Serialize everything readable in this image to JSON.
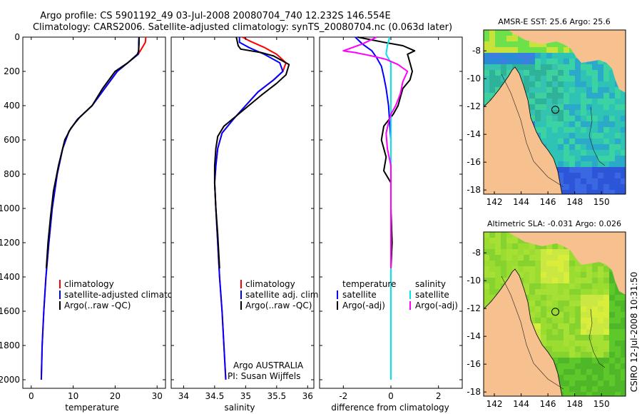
{
  "header": {
    "line1": "Argo profile: CS 5901192_49 03-Jul-2008 20080704_740 12.232S 146.554E",
    "line2": "Climatology: CARS2006. Satellite-adjusted climatology: synTS_20080704.nc (0.063d later)"
  },
  "side_text": "CSIRO 12-Jul-2008 10:31:50",
  "colors": {
    "climatology": "#ff0000",
    "satellite": "#0000ff",
    "argo": "#000000",
    "sal_satellite": "#00e5ee",
    "sal_argo": "#ff00ff",
    "land": "#f7c08f"
  },
  "chart_data": [
    {
      "type": "line",
      "name": "temperature-profile",
      "xlabel": "temperature",
      "ylabel": "",
      "xlim": [
        -2,
        32
      ],
      "ylim": [
        2050,
        0
      ],
      "xticks": [
        0,
        10,
        20,
        30
      ],
      "yticks": [
        0,
        200,
        400,
        600,
        800,
        1000,
        1200,
        1400,
        1600,
        1800,
        2000
      ],
      "legend": [
        "climatology",
        "satellite-adjusted climatology",
        "Argo(..raw -QC)"
      ],
      "series": [
        {
          "name": "climatology",
          "color_key": "climatology",
          "points": [
            [
              27.3,
              0
            ],
            [
              27.2,
              30
            ],
            [
              26.5,
              60
            ],
            [
              25.5,
              100
            ],
            [
              23,
              150
            ],
            [
              20.5,
              200
            ],
            [
              17.5,
              300
            ],
            [
              14.5,
              400
            ],
            [
              11,
              480
            ],
            [
              9,
              550
            ],
            [
              7.5,
              650
            ],
            [
              6.2,
              800
            ],
            [
              5,
              1000
            ],
            [
              4.2,
              1200
            ],
            [
              3.5,
              1400
            ],
            [
              3.0,
              1600
            ],
            [
              2.6,
              1800
            ],
            [
              2.4,
              2000
            ]
          ]
        },
        {
          "name": "satellite-adjusted climatology",
          "color_key": "satellite",
          "points": [
            [
              25.7,
              0
            ],
            [
              25.6,
              30
            ],
            [
              25.6,
              70
            ],
            [
              25.5,
              100
            ],
            [
              23,
              150
            ],
            [
              20.5,
              200
            ],
            [
              17.5,
              300
            ],
            [
              14.5,
              400
            ],
            [
              11,
              480
            ],
            [
              9,
              550
            ],
            [
              7.5,
              650
            ],
            [
              6.2,
              800
            ],
            [
              5,
              1000
            ],
            [
              4.2,
              1200
            ],
            [
              3.5,
              1400
            ],
            [
              3.0,
              1600
            ],
            [
              2.6,
              1800
            ],
            [
              2.4,
              2000
            ]
          ]
        },
        {
          "name": "Argo(..raw -QC)",
          "color_key": "argo",
          "points": [
            [
              25.7,
              0
            ],
            [
              25.7,
              40
            ],
            [
              25.6,
              70
            ],
            [
              25.6,
              80
            ],
            [
              25.3,
              100
            ],
            [
              23,
              150
            ],
            [
              20,
              200
            ],
            [
              17,
              300
            ],
            [
              14.5,
              400
            ],
            [
              11.5,
              470
            ],
            [
              9.5,
              530
            ],
            [
              8,
              600
            ],
            [
              6.5,
              750
            ],
            [
              5.3,
              900
            ],
            [
              4.6,
              1050
            ],
            [
              4,
              1200
            ],
            [
              3.6,
              1350
            ]
          ]
        }
      ]
    },
    {
      "type": "line",
      "name": "salinity-profile",
      "xlabel": "salinity",
      "ylabel": "",
      "xlim": [
        33.8,
        36.1
      ],
      "ylim": [
        2050,
        0
      ],
      "xticks": [
        34,
        34.5,
        35,
        35.5,
        36
      ],
      "yticks": [
        0,
        200,
        400,
        600,
        800,
        1000,
        1200,
        1400,
        1600,
        1800,
        2000
      ],
      "legend": [
        "climatology",
        "satellite adj. clim.",
        "Argo(..raw -QC)"
      ],
      "annotation": [
        "Argo AUSTRALIA",
        "PI: Susan Wijffels"
      ],
      "series": [
        {
          "name": "climatology",
          "color_key": "climatology",
          "points": [
            [
              34.95,
              0
            ],
            [
              35.05,
              20
            ],
            [
              35.3,
              60
            ],
            [
              35.5,
              100
            ],
            [
              35.65,
              150
            ],
            [
              35.6,
              200
            ],
            [
              35.45,
              250
            ],
            [
              35.2,
              320
            ],
            [
              35.0,
              400
            ],
            [
              34.8,
              480
            ],
            [
              34.62,
              560
            ],
            [
              34.55,
              650
            ],
            [
              34.52,
              750
            ],
            [
              34.5,
              850
            ],
            [
              34.52,
              1000
            ],
            [
              34.55,
              1200
            ],
            [
              34.58,
              1400
            ],
            [
              34.62,
              1600
            ],
            [
              34.65,
              1800
            ],
            [
              34.68,
              2000
            ]
          ]
        },
        {
          "name": "satellite adj. clim.",
          "color_key": "satellite",
          "points": [
            [
              34.9,
              0
            ],
            [
              34.9,
              30
            ],
            [
              35.05,
              60
            ],
            [
              35.3,
              100
            ],
            [
              35.55,
              150
            ],
            [
              35.6,
              200
            ],
            [
              35.45,
              250
            ],
            [
              35.2,
              320
            ],
            [
              35.0,
              400
            ],
            [
              34.8,
              480
            ],
            [
              34.62,
              560
            ],
            [
              34.55,
              650
            ],
            [
              34.52,
              750
            ],
            [
              34.5,
              850
            ],
            [
              34.52,
              1000
            ],
            [
              34.55,
              1200
            ],
            [
              34.58,
              1400
            ],
            [
              34.62,
              1600
            ],
            [
              34.65,
              1800
            ],
            [
              34.68,
              2000
            ]
          ]
        },
        {
          "name": "Argo(..raw -QC)",
          "color_key": "argo",
          "points": [
            [
              34.85,
              0
            ],
            [
              34.88,
              50
            ],
            [
              34.92,
              70
            ],
            [
              35.25,
              90
            ],
            [
              35.45,
              110
            ],
            [
              35.7,
              160
            ],
            [
              35.65,
              220
            ],
            [
              35.5,
              270
            ],
            [
              35.25,
              340
            ],
            [
              35.05,
              400
            ],
            [
              34.85,
              460
            ],
            [
              34.65,
              520
            ],
            [
              34.55,
              580
            ],
            [
              34.52,
              650
            ],
            [
              34.5,
              750
            ],
            [
              34.5,
              850
            ],
            [
              34.52,
              1000
            ],
            [
              34.55,
              1150
            ],
            [
              34.58,
              1350
            ]
          ]
        }
      ]
    },
    {
      "type": "line",
      "name": "difference-profile",
      "xlabel": "difference from climatology",
      "ylabel": "",
      "xlim": [
        -3,
        3
      ],
      "ylim": [
        2050,
        0
      ],
      "xticks": [
        -2,
        0,
        2
      ],
      "yticks": [
        0,
        200,
        400,
        600,
        800,
        1000,
        1200,
        1400,
        1600,
        1800,
        2000
      ],
      "legend_columns": [
        {
          "title": "temperature",
          "items": [
            "satellite",
            "Argo(-adj)"
          ]
        },
        {
          "title": "salinity",
          "items": [
            "satellite",
            "Argo(-adj)"
          ]
        }
      ],
      "series": [
        {
          "name": "temperature satellite",
          "color_key": "satellite",
          "points": [
            [
              -1.5,
              0
            ],
            [
              -1.2,
              40
            ],
            [
              -0.8,
              80
            ],
            [
              -0.6,
              120
            ],
            [
              -0.4,
              170
            ],
            [
              -0.3,
              230
            ],
            [
              -0.2,
              300
            ],
            [
              -0.1,
              400
            ],
            [
              -0.05,
              500
            ],
            [
              0,
              600
            ],
            [
              0,
              800
            ],
            [
              0,
              1000
            ],
            [
              0,
              1500
            ],
            [
              0,
              2000
            ]
          ]
        },
        {
          "name": "temperature Argo(-adj)",
          "color_key": "argo",
          "points": [
            [
              -1.4,
              0
            ],
            [
              -0.3,
              30
            ],
            [
              0.5,
              50
            ],
            [
              1.0,
              80
            ],
            [
              0.7,
              100
            ],
            [
              0.8,
              150
            ],
            [
              0.9,
              200
            ],
            [
              0.8,
              250
            ],
            [
              0.5,
              300
            ],
            [
              0.3,
              400
            ],
            [
              0.1,
              450
            ],
            [
              -0.3,
              520
            ],
            [
              -0.4,
              600
            ],
            [
              -0.2,
              700
            ],
            [
              -0.3,
              780
            ],
            [
              0,
              850
            ],
            [
              0,
              1000
            ],
            [
              0.05,
              1200
            ],
            [
              0,
              1350
            ]
          ]
        },
        {
          "name": "salinity satellite",
          "color_key": "sal_satellite",
          "points": [
            [
              -0.05,
              0
            ],
            [
              -0.15,
              50
            ],
            [
              -0.2,
              100
            ],
            [
              0,
              150
            ],
            [
              0,
              200
            ],
            [
              0,
              300
            ],
            [
              0,
              500
            ],
            [
              0,
              1000
            ],
            [
              0,
              1500
            ],
            [
              0,
              2000
            ]
          ]
        },
        {
          "name": "salinity Argo(-adj)",
          "color_key": "sal_argo",
          "points": [
            [
              -0.6,
              0
            ],
            [
              -0.9,
              20
            ],
            [
              -1.2,
              40
            ],
            [
              -2.0,
              80
            ],
            [
              -1.5,
              90
            ],
            [
              -0.8,
              110
            ],
            [
              -0.2,
              130
            ],
            [
              0.3,
              160
            ],
            [
              0.7,
              200
            ],
            [
              0.5,
              260
            ],
            [
              0.4,
              330
            ],
            [
              0.2,
              400
            ],
            [
              0,
              450
            ],
            [
              -0.1,
              500
            ],
            [
              -0.2,
              560
            ],
            [
              -0.15,
              650
            ],
            [
              0,
              750
            ],
            [
              0,
              900
            ],
            [
              0,
              1200
            ],
            [
              0,
              1350
            ]
          ]
        }
      ]
    },
    {
      "type": "heatmap",
      "name": "sst-map",
      "title": "AMSR-E SST: 25.6 Argo: 25.6",
      "xlim": [
        141.2,
        151.8
      ],
      "ylim": [
        -18.3,
        -6.5
      ],
      "xticks": [
        142,
        144,
        146,
        148,
        150
      ],
      "yticks": [
        -8,
        -10,
        -12,
        -14,
        -16,
        -18
      ],
      "marker": {
        "lon": 146.554,
        "lat": -12.232
      }
    },
    {
      "type": "heatmap",
      "name": "sla-map",
      "title": "Altimetric SLA: -0.031 Argo: 0.026",
      "xlim": [
        141.2,
        151.8
      ],
      "ylim": [
        -18.3,
        -6.5
      ],
      "xticks": [
        142,
        144,
        146,
        148,
        150
      ],
      "yticks": [
        -8,
        -10,
        -12,
        -14,
        -16,
        -18
      ],
      "marker": {
        "lon": 146.554,
        "lat": -12.232
      }
    }
  ]
}
